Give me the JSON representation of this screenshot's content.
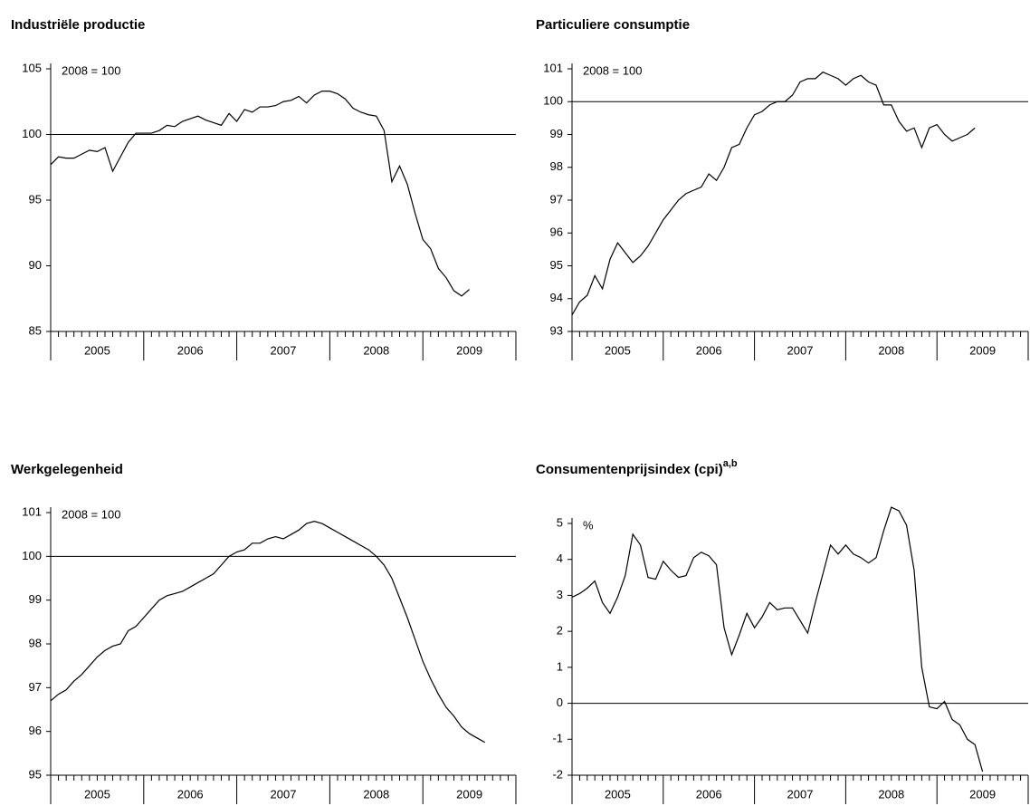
{
  "chart_data": [
    {
      "type": "line",
      "title": "Industriële productie",
      "annotation": "2008 = 100",
      "year_labels": [
        "2005",
        "2006",
        "2007",
        "2008",
        "2009"
      ],
      "ylim": [
        85,
        105
      ],
      "yticks": [
        85,
        90,
        95,
        100,
        105
      ],
      "reference_line": 100,
      "color": "#000000",
      "values": [
        97.7,
        98.3,
        98.2,
        98.2,
        98.5,
        98.8,
        98.7,
        99.0,
        97.2,
        98.3,
        99.4,
        100.1,
        100.1,
        100.1,
        100.3,
        100.7,
        100.6,
        101.0,
        101.2,
        101.4,
        101.1,
        100.9,
        100.7,
        101.6,
        101.0,
        101.9,
        101.7,
        102.1,
        102.1,
        102.2,
        102.5,
        102.6,
        102.9,
        102.4,
        103.0,
        103.3,
        103.3,
        103.1,
        102.7,
        102.0,
        101.7,
        101.5,
        101.4,
        100.3,
        96.4,
        97.6,
        96.2,
        94.0,
        92.0,
        91.3,
        89.8,
        89.1,
        88.1,
        87.7,
        88.2
      ]
    },
    {
      "type": "line",
      "title": "Particuliere consumptie",
      "annotation": "2008 = 100",
      "year_labels": [
        "2005",
        "2006",
        "2007",
        "2008",
        "2009"
      ],
      "ylim": [
        93,
        101
      ],
      "yticks": [
        93,
        94,
        95,
        96,
        97,
        98,
        99,
        100,
        101
      ],
      "reference_line": 100,
      "color": "#000000",
      "values": [
        93.5,
        93.9,
        94.1,
        94.7,
        94.3,
        95.2,
        95.7,
        95.4,
        95.1,
        95.3,
        95.6,
        96.0,
        96.4,
        96.7,
        97.0,
        97.2,
        97.3,
        97.4,
        97.8,
        97.6,
        98.0,
        98.6,
        98.7,
        99.2,
        99.6,
        99.7,
        99.9,
        100.0,
        100.0,
        100.2,
        100.6,
        100.7,
        100.7,
        100.9,
        100.8,
        100.7,
        100.5,
        100.7,
        100.8,
        100.6,
        100.5,
        99.9,
        99.9,
        99.4,
        99.1,
        99.2,
        98.6,
        99.2,
        99.3,
        99.0,
        98.8,
        98.9,
        99.0,
        99.2
      ]
    },
    {
      "type": "line",
      "title": "Werkgelegenheid",
      "annotation": "2008 = 100",
      "year_labels": [
        "2005",
        "2006",
        "2007",
        "2008",
        "2009"
      ],
      "ylim": [
        95,
        101
      ],
      "yticks": [
        95,
        96,
        97,
        98,
        99,
        100,
        101
      ],
      "reference_line": 100,
      "color": "#000000",
      "values": [
        96.7,
        96.85,
        96.95,
        97.15,
        97.3,
        97.5,
        97.7,
        97.85,
        97.95,
        98.0,
        98.3,
        98.4,
        98.6,
        98.8,
        99.0,
        99.1,
        99.15,
        99.2,
        99.3,
        99.4,
        99.5,
        99.6,
        99.8,
        100.0,
        100.1,
        100.15,
        100.3,
        100.3,
        100.4,
        100.45,
        100.4,
        100.5,
        100.6,
        100.75,
        100.8,
        100.75,
        100.65,
        100.55,
        100.45,
        100.35,
        100.25,
        100.15,
        100.0,
        99.8,
        99.5,
        99.05,
        98.6,
        98.1,
        97.6,
        97.2,
        96.85,
        96.55,
        96.35,
        96.1,
        95.95,
        95.85,
        95.75
      ]
    },
    {
      "type": "line",
      "title": "Consumentenprijsindex (cpi)",
      "title_superscript": "a,b",
      "annotation": "%",
      "year_labels": [
        "2005",
        "2006",
        "2007",
        "2008",
        "2009"
      ],
      "ylim": [
        -2,
        5
      ],
      "yticks": [
        -2,
        -1,
        0,
        1,
        2,
        3,
        4,
        5
      ],
      "reference_line": 0,
      "color": "#000000",
      "values": [
        2.95,
        3.05,
        3.2,
        3.4,
        2.8,
        2.5,
        2.95,
        3.55,
        4.7,
        4.4,
        3.5,
        3.45,
        3.95,
        3.7,
        3.5,
        3.55,
        4.05,
        4.2,
        4.1,
        3.85,
        2.1,
        1.35,
        1.9,
        2.5,
        2.1,
        2.4,
        2.8,
        2.6,
        2.65,
        2.65,
        2.3,
        1.95,
        2.8,
        3.6,
        4.4,
        4.15,
        4.4,
        4.15,
        4.05,
        3.9,
        4.05,
        4.8,
        5.45,
        5.35,
        4.95,
        3.7,
        1.0,
        -0.1,
        -0.15,
        0.05,
        -0.45,
        -0.6,
        -1.0,
        -1.15,
        -1.9
      ]
    }
  ]
}
